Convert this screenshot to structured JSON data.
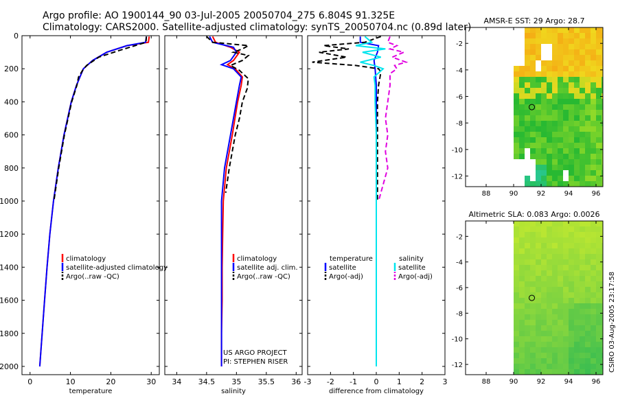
{
  "header": {
    "title_line1": "Argo profile: AO 1900144_90 03-Jul-2005 20050704_275 6.804S 91.325E",
    "title_line2": "Climatology: CARS2000. Satellite-adjusted climatology: synTS_20050704.nc (0.89d later)"
  },
  "side_note": "CSIRO 03-Aug-2005 23:17:58",
  "colors": {
    "climatology": "#ff0000",
    "satellite": "#0000ff",
    "argo": "#000000",
    "salinity_sat": "#00e5ee",
    "salinity_argo": "#e000e0"
  },
  "chart_data": [
    {
      "id": "temperature",
      "type": "line",
      "xlabel": "temperature",
      "xlim": [
        -2,
        32
      ],
      "ylim": [
        2050,
        0
      ],
      "xticks": [
        "0",
        "10",
        "20",
        "30"
      ],
      "yticks": [
        "0",
        "200",
        "400",
        "600",
        "800",
        "1000",
        "1200",
        "1400",
        "1600",
        "1800",
        "2000"
      ],
      "legend": [
        "climatology",
        "satellite-adjusted climatology",
        "Argo(..raw -QC)"
      ],
      "series": [
        {
          "name": "climatology",
          "depth": [
            5,
            40,
            60,
            100,
            150,
            200,
            300,
            400,
            600,
            800,
            1000,
            1200,
            1400,
            1600,
            1800,
            2000
          ],
          "values": [
            29.5,
            29.3,
            24,
            19,
            15.5,
            13.2,
            11.5,
            10.2,
            8.4,
            7.0,
            5.8,
            4.9,
            4.2,
            3.6,
            3.0,
            2.4
          ]
        },
        {
          "name": "satellite",
          "depth": [
            5,
            40,
            60,
            100,
            150,
            200,
            300,
            400,
            600,
            800,
            1000,
            1200,
            1400,
            1600,
            1800,
            2000
          ],
          "values": [
            28.8,
            28.6,
            24,
            19,
            15.5,
            13.2,
            11.5,
            10.2,
            8.4,
            7.0,
            5.8,
            4.9,
            4.2,
            3.6,
            3.0,
            2.4
          ]
        },
        {
          "name": "argo",
          "depth": [
            5,
            40,
            60,
            90,
            130,
            180,
            210,
            250,
            300,
            400,
            600,
            800,
            1000
          ],
          "values": [
            28.8,
            28.7,
            26,
            22,
            17,
            14,
            13,
            12,
            11.6,
            10.3,
            8.5,
            7.1,
            5.9
          ]
        }
      ]
    },
    {
      "id": "salinity",
      "type": "line",
      "xlabel": "salinity",
      "xlim": [
        33.8,
        36.1
      ],
      "ylim": [
        2050,
        0
      ],
      "xticks": [
        "34",
        "34.5",
        "35",
        "35.5",
        "36"
      ],
      "yticks": [],
      "legend": [
        "climatology",
        "satellite adj. clim.",
        "Argo(..raw -QC)"
      ],
      "credit": [
        "US ARGO PROJECT",
        "PI: STEPHEN RISER"
      ],
      "series": [
        {
          "name": "climatology",
          "depth": [
            5,
            40,
            70,
            100,
            150,
            175,
            200,
            250,
            300,
            400,
            600,
            800,
            1000,
            1200,
            1400,
            1600,
            1800,
            2000
          ],
          "values": [
            34.6,
            34.65,
            34.9,
            35.05,
            34.95,
            34.85,
            34.98,
            35.1,
            35.08,
            35.02,
            34.93,
            34.83,
            34.78,
            34.77,
            34.76,
            34.76,
            34.75,
            34.75
          ]
        },
        {
          "name": "satellite",
          "depth": [
            5,
            40,
            70,
            100,
            150,
            175,
            200,
            250,
            300,
            400,
            600,
            800,
            1000,
            1200,
            1400,
            1600,
            1800,
            2000
          ],
          "values": [
            34.55,
            34.6,
            34.95,
            35.0,
            34.9,
            34.75,
            34.95,
            35.08,
            35.05,
            35.0,
            34.9,
            34.8,
            34.75,
            34.75,
            34.75,
            34.75,
            34.75,
            34.75
          ]
        },
        {
          "name": "argo",
          "depth": [
            5,
            40,
            60,
            80,
            100,
            120,
            150,
            180,
            210,
            260,
            320,
            400,
            500,
            600,
            800,
            950
          ],
          "values": [
            34.5,
            34.6,
            35.2,
            35.1,
            34.95,
            35.2,
            35.1,
            34.9,
            35.05,
            35.2,
            35.18,
            35.1,
            35.05,
            34.98,
            34.88,
            34.82
          ]
        }
      ]
    },
    {
      "id": "difference",
      "type": "line",
      "xlabel": "difference from climatology",
      "xlim": [
        -3,
        3
      ],
      "ylim": [
        2050,
        0
      ],
      "xticks": [
        "-3",
        "-2",
        "-1",
        "0",
        "1",
        "2",
        "3"
      ],
      "yticks": [],
      "legend_left_title": "temperature",
      "legend_right_title": "salinity",
      "legend_left": [
        "satellite",
        "Argo(-adj)"
      ],
      "legend_right": [
        "satellite",
        "Argo(-adj)"
      ],
      "series": [
        {
          "name": "temp_satellite",
          "depth": [
            5,
            40,
            60,
            100,
            150,
            200,
            300,
            600,
            1000,
            2000
          ],
          "values": [
            -0.7,
            -0.7,
            0.1,
            0.05,
            -0.1,
            -0.05,
            0.0,
            0.0,
            0.0,
            0.0
          ]
        },
        {
          "name": "temp_argo",
          "depth": [
            5,
            40,
            60,
            80,
            100,
            130,
            160,
            180,
            200,
            220,
            300,
            400,
            600,
            800,
            1000
          ],
          "values": [
            0.2,
            -0.5,
            -2.3,
            -1.2,
            -2.5,
            -1.3,
            -2.8,
            -0.9,
            0.1,
            0.2,
            0.1,
            0.05,
            0.05,
            0.05,
            0.05
          ]
        },
        {
          "name": "sal_satellite",
          "depth": [
            5,
            40,
            60,
            80,
            100,
            130,
            160,
            180,
            200,
            250,
            300,
            400,
            600,
            800,
            1000,
            2000
          ],
          "values": [
            -0.5,
            -0.2,
            -0.9,
            0.4,
            -0.6,
            0.2,
            -0.7,
            -0.1,
            0.3,
            -0.1,
            -0.05,
            -0.05,
            0.0,
            0.0,
            0.0,
            0.0
          ]
        },
        {
          "name": "sal_argo",
          "depth": [
            5,
            40,
            60,
            80,
            100,
            130,
            160,
            180,
            200,
            230,
            300,
            400,
            500,
            600,
            700,
            800,
            1000
          ],
          "values": [
            0.6,
            0.5,
            0.9,
            0.6,
            1.2,
            0.7,
            1.3,
            0.8,
            0.9,
            0.6,
            0.6,
            0.5,
            0.4,
            0.5,
            0.4,
            0.5,
            0.1
          ]
        }
      ]
    },
    {
      "id": "sst_map",
      "type": "heatmap",
      "title": "AMSR-E SST: 29 Argo: 28.7",
      "xlim": [
        86.5,
        96.5
      ],
      "ylim": [
        -12.8,
        -0.8
      ],
      "xticks": [
        "88",
        "90",
        "92",
        "94",
        "96"
      ],
      "yticks": [
        "-2",
        "-4",
        "-6",
        "-8",
        "-10",
        "-12"
      ],
      "data_lon_min": 90,
      "argo_position": {
        "lon": 91.325,
        "lat": -6.804
      }
    },
    {
      "id": "sla_map",
      "type": "heatmap",
      "title": "Altimetric SLA: 0.083 Argo: 0.0026",
      "xlim": [
        86.5,
        96.5
      ],
      "ylim": [
        -12.8,
        -0.8
      ],
      "xticks": [
        "88",
        "90",
        "92",
        "94",
        "96"
      ],
      "yticks": [
        "-2",
        "-4",
        "-6",
        "-8",
        "-10",
        "-12"
      ],
      "data_lon_min": 90,
      "argo_position": {
        "lon": 91.325,
        "lat": -6.804
      }
    }
  ]
}
